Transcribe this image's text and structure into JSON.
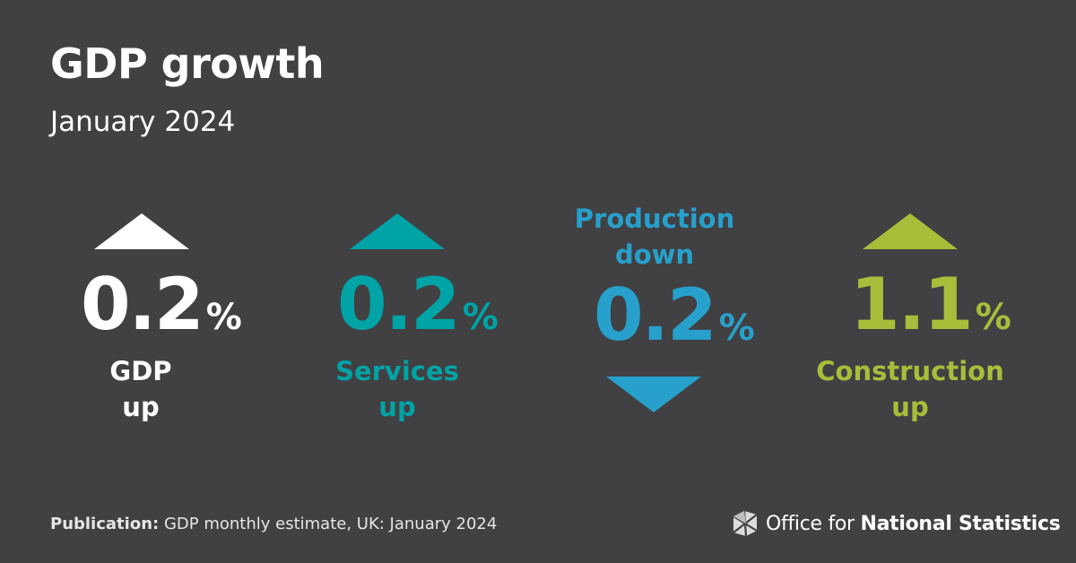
{
  "title": "GDP growth",
  "subtitle": "January 2024",
  "indicators": [
    {
      "name": "GDP",
      "direction": "up",
      "value": "0.2",
      "unit": "%",
      "color": "#ffffff"
    },
    {
      "name": "Services",
      "direction": "up",
      "value": "0.2",
      "unit": "%",
      "color": "#00a3a6"
    },
    {
      "name": "Production",
      "direction": "down",
      "value": "0.2",
      "unit": "%",
      "color": "#27a0cc"
    },
    {
      "name": "Construction",
      "direction": "up",
      "value": "1.1",
      "unit": "%",
      "color": "#a8bd3a"
    }
  ],
  "footer": {
    "label": "Publication:",
    "text": "GDP monthly estimate, UK: January 2024"
  },
  "logo": {
    "prefix": "Office for",
    "name": "National Statistics",
    "icon": "ons-logo-icon"
  }
}
